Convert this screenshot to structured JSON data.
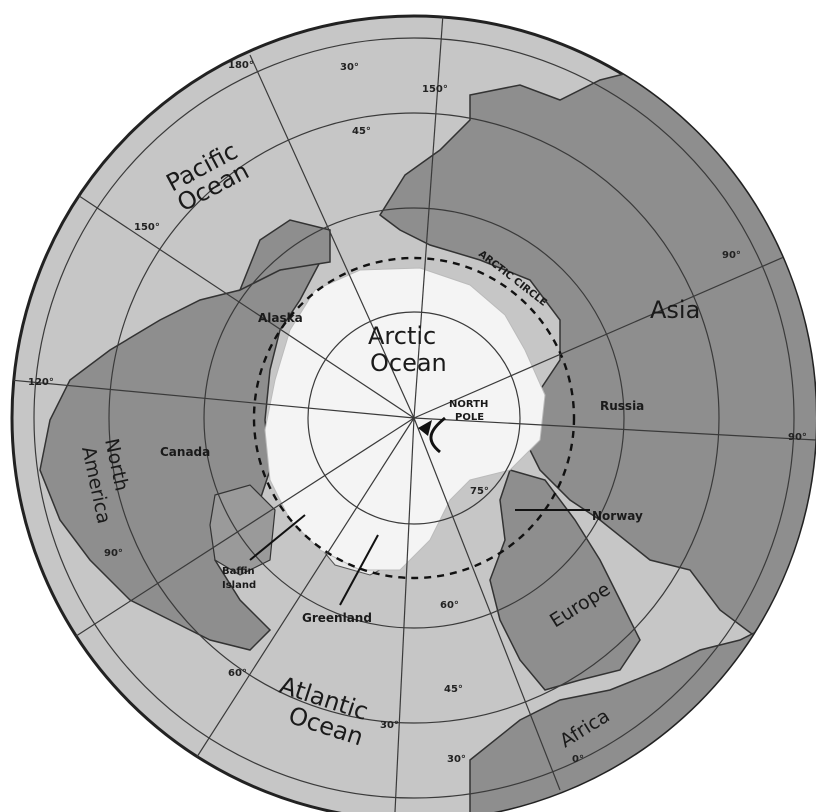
{
  "labels": {
    "pacific_ocean": [
      "Pacific",
      "Ocean"
    ],
    "arctic_ocean": [
      "Arctic",
      "Ocean"
    ],
    "atlantic_ocean": [
      "Atlantic",
      "Ocean"
    ],
    "north_america": [
      "North",
      "America"
    ],
    "asia": "Asia",
    "europe": "Europe",
    "africa": "Africa",
    "russia": "Russia",
    "norway": "Norway",
    "canada": "Canada",
    "alaska": "Alaska",
    "greenland": "Greenland",
    "baffin_island": [
      "Baffin",
      "Island"
    ],
    "north_pole": [
      "NORTH",
      "POLE"
    ],
    "arctic_circle": "ARCTIC CIRCLE"
  },
  "degree_labels": {
    "d180": "180°",
    "d150": "150°",
    "d120": "120°",
    "d90_left": "90°",
    "d90_right": "90°",
    "d90_top": "90°",
    "d60": "60°",
    "d30": "30°",
    "d0": "0°",
    "d30_bottom": "30°",
    "lat30_top": "30°",
    "lat45_top": "45°",
    "lat60_bottom": "60°",
    "lat45_bottom": "45°",
    "lat30_bottom": "30°",
    "lat75": "75°",
    "d150_left": "150°"
  },
  "colors": {
    "ocean": "#c6c6c6",
    "land": "#8e8e8e",
    "ice": "#f4f4f4",
    "grid": "#3a3a3a"
  }
}
